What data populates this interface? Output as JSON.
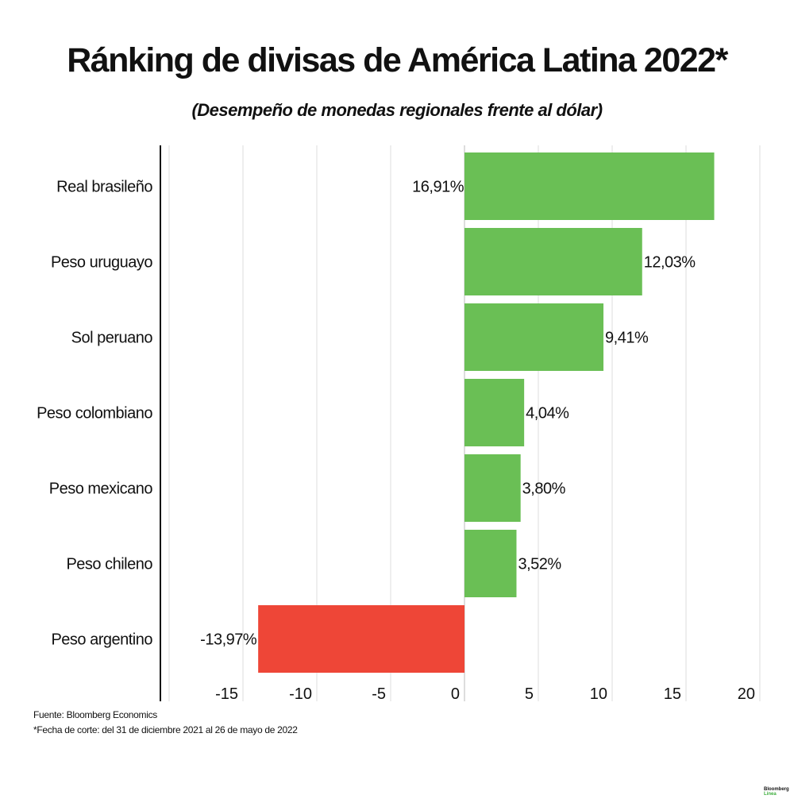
{
  "title": "Ránking de divisas de América Latina 2022*",
  "subtitle": "(Desempeño de monedas regionales frente al dólar)",
  "chart_data": {
    "type": "bar",
    "orientation": "horizontal",
    "categories": [
      "Real brasileño",
      "Peso uruguayo",
      "Sol peruano",
      "Peso colombiano",
      "Peso mexicano",
      "Peso chileno",
      "Peso argentino"
    ],
    "values": [
      16.91,
      12.03,
      9.41,
      4.04,
      3.8,
      3.52,
      -13.97
    ],
    "data_labels": [
      "16,91%",
      "12,03%",
      "9,41%",
      "4,04%",
      "3,80%",
      "3,52%",
      "-13,97%"
    ],
    "xlim": [
      -20,
      20
    ],
    "x_ticks": [
      -15,
      -10,
      -5,
      0,
      5,
      10,
      15,
      20
    ],
    "grid": true,
    "colors": {
      "positive": "#6abf55",
      "negative": "#ee4637"
    }
  },
  "footer": {
    "source": "Fuente: Bloomberg Economics",
    "note": "*Fecha de corte: del 31 de diciembre 2021 al 26 de mayo de 2022"
  },
  "logo": {
    "line1": "Bloomberg",
    "line2": "Línea"
  }
}
